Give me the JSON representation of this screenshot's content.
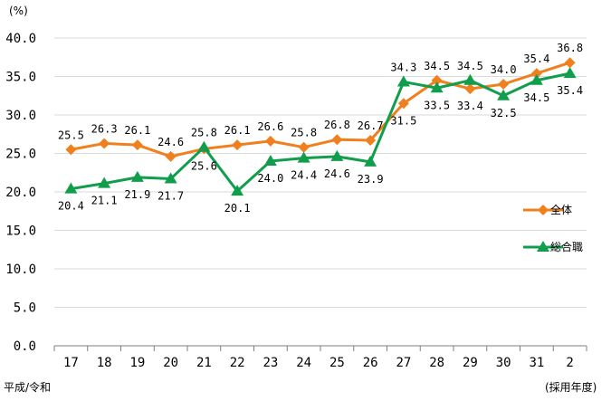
{
  "chart_data": {
    "type": "line",
    "title": "",
    "y_unit_label": "(%)",
    "x_era_label": "平成/令和",
    "x_unit_label": "(採用年度)",
    "ylim": [
      0,
      40
    ],
    "yticks": [
      "0.0",
      "5.0",
      "10.0",
      "15.0",
      "20.0",
      "25.0",
      "30.0",
      "35.0",
      "40.0"
    ],
    "categories": [
      "17",
      "18",
      "19",
      "20",
      "21",
      "22",
      "23",
      "24",
      "25",
      "26",
      "27",
      "28",
      "29",
      "30",
      "31",
      "2"
    ],
    "grid": "horizontal",
    "legend_position": "right",
    "series": [
      {
        "name": "全体",
        "color": "#F07F1E",
        "marker": "diamond",
        "values": [
          25.5,
          26.3,
          26.1,
          24.6,
          25.6,
          26.1,
          26.6,
          25.8,
          26.8,
          26.7,
          31.5,
          34.5,
          33.4,
          34.0,
          35.4,
          36.8
        ],
        "labels": [
          "25.5",
          "26.3",
          "26.1",
          "24.6",
          "25.6",
          "26.1",
          "26.6",
          "25.8",
          "26.8",
          "26.7",
          "31.5",
          "34.5",
          "33.4",
          "34.0",
          "35.4",
          "36.8"
        ]
      },
      {
        "name": "総合職",
        "color": "#119E4C",
        "marker": "triangle",
        "values": [
          20.4,
          21.1,
          21.9,
          21.7,
          25.8,
          20.1,
          24.0,
          24.4,
          24.6,
          23.9,
          34.3,
          33.5,
          34.5,
          32.5,
          34.5,
          35.4
        ],
        "labels": [
          "20.4",
          "21.1",
          "21.9",
          "21.7",
          "25.8",
          "20.1",
          "24.0",
          "24.4",
          "24.6",
          "23.9",
          "34.3",
          "33.5",
          "34.5",
          "32.5",
          "34.5",
          "35.4"
        ]
      }
    ]
  }
}
